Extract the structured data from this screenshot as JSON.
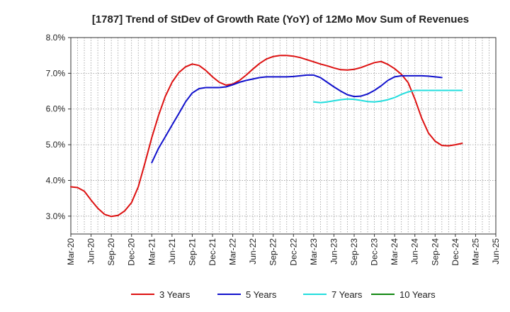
{
  "chart_data": {
    "type": "line",
    "title": "[1787]  Trend of StDev of Growth Rate (YoY) of 12Mo Mov Sum of Revenues",
    "xlabel": "",
    "ylabel": "",
    "ylim": [
      2.5,
      8.0
    ],
    "y_ticks": [
      3.0,
      4.0,
      5.0,
      6.0,
      7.0,
      8.0
    ],
    "y_tick_labels": [
      "3.0%",
      "4.0%",
      "5.0%",
      "6.0%",
      "7.0%",
      "8.0%"
    ],
    "x_tick_labels": [
      "Mar-20",
      "Jun-20",
      "Sep-20",
      "Dec-20",
      "Mar-21",
      "Jun-21",
      "Sep-21",
      "Dec-21",
      "Mar-22",
      "Jun-22",
      "Sep-22",
      "Dec-22",
      "Mar-23",
      "Jun-23",
      "Sep-23",
      "Dec-23",
      "Mar-24",
      "Jun-24",
      "Sep-24",
      "Dec-24",
      "Mar-25",
      "Jun-25"
    ],
    "grid": true,
    "legend_position": "bottom",
    "series": [
      {
        "name": "3 Years",
        "color": "#dd1111",
        "start_index": 0,
        "values": [
          3.82,
          3.8,
          3.7,
          3.45,
          3.22,
          3.05,
          2.99,
          3.02,
          3.15,
          3.38,
          3.82,
          4.5,
          5.2,
          5.82,
          6.35,
          6.75,
          7.02,
          7.18,
          7.26,
          7.22,
          7.08,
          6.9,
          6.75,
          6.67,
          6.7,
          6.8,
          6.95,
          7.12,
          7.28,
          7.4,
          7.47,
          7.5,
          7.5,
          7.48,
          7.44,
          7.38,
          7.32,
          7.26,
          7.21,
          7.15,
          7.1,
          7.09,
          7.11,
          7.16,
          7.23,
          7.3,
          7.33,
          7.25,
          7.13,
          6.97,
          6.74,
          6.28,
          5.75,
          5.33,
          5.1,
          4.98,
          4.97,
          5.0,
          5.04
        ]
      },
      {
        "name": "5 Years",
        "color": "#1111cc",
        "start_index": 12,
        "values": [
          4.5,
          4.9,
          5.22,
          5.55,
          5.87,
          6.2,
          6.45,
          6.57,
          6.6,
          6.6,
          6.6,
          6.62,
          6.68,
          6.75,
          6.8,
          6.84,
          6.88,
          6.9,
          6.9,
          6.9,
          6.9,
          6.91,
          6.93,
          6.95,
          6.95,
          6.88,
          6.75,
          6.62,
          6.5,
          6.4,
          6.35,
          6.36,
          6.42,
          6.52,
          6.65,
          6.8,
          6.9,
          6.93,
          6.93,
          6.93,
          6.93,
          6.92,
          6.9,
          6.88
        ]
      },
      {
        "name": "7 Years",
        "color": "#22dddd",
        "start_index": 36,
        "values": [
          6.2,
          6.18,
          6.2,
          6.23,
          6.26,
          6.28,
          6.27,
          6.24,
          6.21,
          6.2,
          6.22,
          6.26,
          6.32,
          6.41,
          6.48,
          6.52,
          6.52,
          6.52,
          6.52,
          6.52,
          6.52,
          6.52,
          6.52
        ]
      },
      {
        "name": "10 Years",
        "color": "#118811",
        "start_index": 0,
        "values": []
      }
    ]
  }
}
